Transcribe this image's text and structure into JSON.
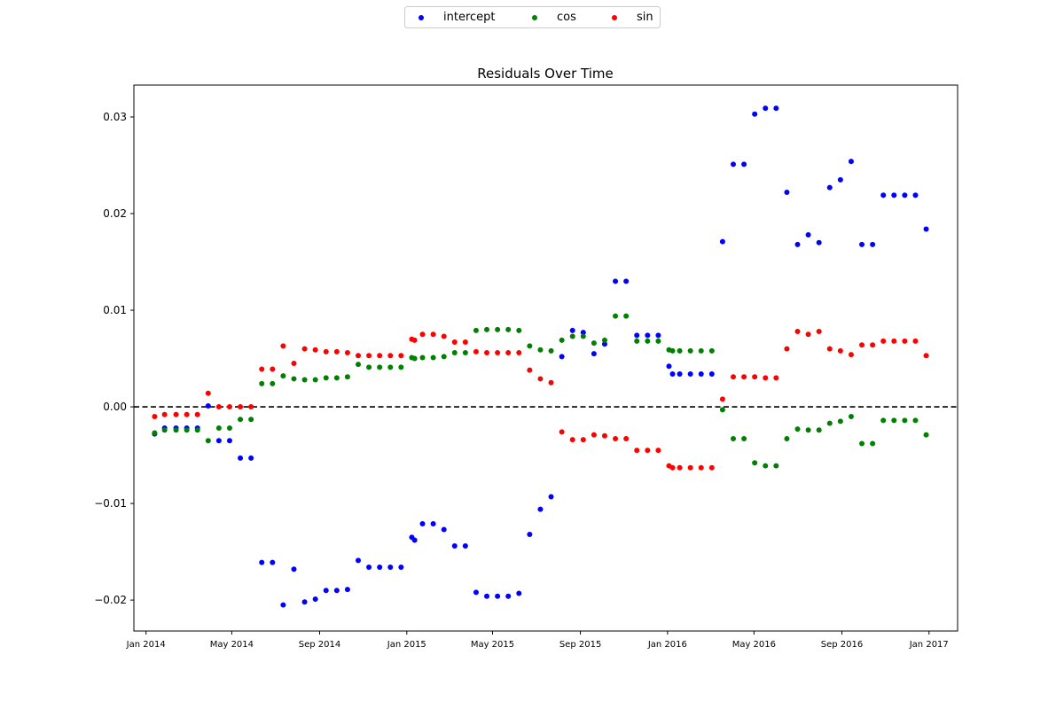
{
  "chart_data": {
    "type": "scatter",
    "title": "Residuals Over Time",
    "xlabel": "",
    "ylabel": "",
    "x_axis": {
      "type": "date",
      "range": [
        "2013-12-15",
        "2017-02-10"
      ],
      "ticks": [
        {
          "date": "2014-01-01",
          "label": "Jan 2014"
        },
        {
          "date": "2014-05-01",
          "label": "May 2014"
        },
        {
          "date": "2014-09-01",
          "label": "Sep 2014"
        },
        {
          "date": "2015-01-01",
          "label": "Jan 2015"
        },
        {
          "date": "2015-05-01",
          "label": "May 2015"
        },
        {
          "date": "2015-09-01",
          "label": "Sep 2015"
        },
        {
          "date": "2016-01-01",
          "label": "Jan 2016"
        },
        {
          "date": "2016-05-01",
          "label": "May 2016"
        },
        {
          "date": "2016-09-01",
          "label": "Sep 2016"
        },
        {
          "date": "2017-01-01",
          "label": "Jan 2017"
        }
      ]
    },
    "y_axis": {
      "range": [
        -0.0232,
        0.0333
      ],
      "ticks": [
        {
          "value": -0.02,
          "label": "−0.02"
        },
        {
          "value": -0.01,
          "label": "−0.01"
        },
        {
          "value": 0.0,
          "label": "0.00"
        },
        {
          "value": 0.01,
          "label": "0.01"
        },
        {
          "value": 0.02,
          "label": "0.02"
        },
        {
          "value": 0.03,
          "label": "0.03"
        }
      ]
    },
    "reference_line": {
      "y": 0.0,
      "style": "dashed",
      "color": "#000000"
    },
    "grid": false,
    "legend": {
      "position": "top-center",
      "columns": 3
    },
    "dates": [
      "2014-01-13",
      "2014-01-27",
      "2014-02-12",
      "2014-02-27",
      "2014-03-14",
      "2014-03-29",
      "2014-04-13",
      "2014-04-28",
      "2014-05-13",
      "2014-05-28",
      "2014-06-12",
      "2014-06-27",
      "2014-07-12",
      "2014-07-27",
      "2014-08-11",
      "2014-08-26",
      "2014-09-10",
      "2014-09-25",
      "2014-10-10",
      "2014-10-25",
      "2014-11-09",
      "2014-11-24",
      "2014-12-09",
      "2014-12-24",
      "2015-01-08",
      "2015-01-12",
      "2015-01-23",
      "2015-02-07",
      "2015-02-22",
      "2015-03-09",
      "2015-03-24",
      "2015-04-08",
      "2015-04-23",
      "2015-05-08",
      "2015-05-23",
      "2015-06-07",
      "2015-06-22",
      "2015-07-07",
      "2015-07-22",
      "2015-08-06",
      "2015-08-21",
      "2015-09-05",
      "2015-09-20",
      "2015-10-05",
      "2015-10-20",
      "2015-11-04",
      "2015-11-19",
      "2015-12-04",
      "2015-12-19",
      "2016-01-03",
      "2016-01-08",
      "2016-01-18",
      "2016-02-02",
      "2016-02-17",
      "2016-03-03",
      "2016-03-18",
      "2016-04-02",
      "2016-04-17",
      "2016-05-02",
      "2016-05-17",
      "2016-06-01",
      "2016-06-16",
      "2016-07-01",
      "2016-07-16",
      "2016-07-31",
      "2016-08-15",
      "2016-08-30",
      "2016-09-14",
      "2016-09-29",
      "2016-10-14",
      "2016-10-29",
      "2016-11-13",
      "2016-11-28",
      "2016-12-13",
      "2016-12-28"
    ],
    "series": [
      {
        "name": "intercept",
        "color": "#0000ff",
        "values": [
          -0.0028,
          -0.0022,
          -0.0022,
          -0.0022,
          -0.0022,
          0.0001,
          -0.0035,
          -0.0035,
          -0.0053,
          -0.0053,
          -0.0161,
          -0.0161,
          -0.0205,
          -0.0168,
          -0.0202,
          -0.0199,
          -0.019,
          -0.019,
          -0.0189,
          -0.0159,
          -0.0166,
          -0.0166,
          -0.0166,
          -0.0166,
          -0.0135,
          -0.0138,
          -0.0121,
          -0.0121,
          -0.0127,
          -0.0144,
          -0.0144,
          -0.0192,
          -0.0196,
          -0.0196,
          -0.0196,
          -0.0193,
          -0.0132,
          -0.0106,
          -0.0093,
          0.0052,
          0.0079,
          0.0077,
          0.0055,
          0.0065,
          0.013,
          0.013,
          0.0074,
          0.0074,
          0.0074,
          0.0042,
          0.0034,
          0.0034,
          0.0034,
          0.0034,
          0.0034,
          0.0171,
          0.0251,
          0.0251,
          0.0303,
          0.0309,
          0.0309,
          0.0222,
          0.0168,
          0.0178,
          0.017,
          0.0227,
          0.0235,
          0.0254,
          0.0168,
          0.0168,
          0.0219,
          0.0219,
          0.0219,
          0.0219,
          0.0184
        ]
      },
      {
        "name": "cos",
        "color": "#008000",
        "values": [
          -0.0027,
          -0.0024,
          -0.0024,
          -0.0024,
          -0.0024,
          -0.0035,
          -0.0022,
          -0.0022,
          -0.0013,
          -0.0013,
          0.0024,
          0.0024,
          0.0032,
          0.0029,
          0.0028,
          0.0028,
          0.003,
          0.003,
          0.0031,
          0.0044,
          0.0041,
          0.0041,
          0.0041,
          0.0041,
          0.0051,
          0.005,
          0.0051,
          0.0051,
          0.0052,
          0.0056,
          0.0056,
          0.0079,
          0.008,
          0.008,
          0.008,
          0.0079,
          0.0063,
          0.0059,
          0.0058,
          0.0069,
          0.0073,
          0.0073,
          0.0066,
          0.0069,
          0.0094,
          0.0094,
          0.0068,
          0.0068,
          0.0068,
          0.0059,
          0.0058,
          0.0058,
          0.0058,
          0.0058,
          0.0058,
          -0.0003,
          -0.0033,
          -0.0033,
          -0.0058,
          -0.0061,
          -0.0061,
          -0.0033,
          -0.0023,
          -0.0024,
          -0.0024,
          -0.0017,
          -0.0015,
          -0.001,
          -0.0038,
          -0.0038,
          -0.0014,
          -0.0014,
          -0.0014,
          -0.0014,
          -0.0029
        ]
      },
      {
        "name": "sin",
        "color": "#ff0000",
        "values": [
          -0.001,
          -0.0008,
          -0.0008,
          -0.0008,
          -0.0008,
          0.0014,
          0.0,
          0.0,
          0.0,
          0.0,
          0.0039,
          0.0039,
          0.0063,
          0.0045,
          0.006,
          0.0059,
          0.0057,
          0.0057,
          0.0056,
          0.0053,
          0.0053,
          0.0053,
          0.0053,
          0.0053,
          0.007,
          0.0069,
          0.0075,
          0.0075,
          0.0073,
          0.0067,
          0.0067,
          0.0057,
          0.0056,
          0.0056,
          0.0056,
          0.0056,
          0.0038,
          0.0029,
          0.0025,
          -0.0026,
          -0.0034,
          -0.0034,
          -0.0029,
          -0.003,
          -0.0033,
          -0.0033,
          -0.0045,
          -0.0045,
          -0.0045,
          -0.0061,
          -0.0063,
          -0.0063,
          -0.0063,
          -0.0063,
          -0.0063,
          0.0008,
          0.0031,
          0.0031,
          0.0031,
          0.003,
          0.003,
          0.006,
          0.0078,
          0.0075,
          0.0078,
          0.006,
          0.0058,
          0.0054,
          0.0064,
          0.0064,
          0.0068,
          0.0068,
          0.0068,
          0.0068,
          0.0053
        ]
      }
    ]
  }
}
